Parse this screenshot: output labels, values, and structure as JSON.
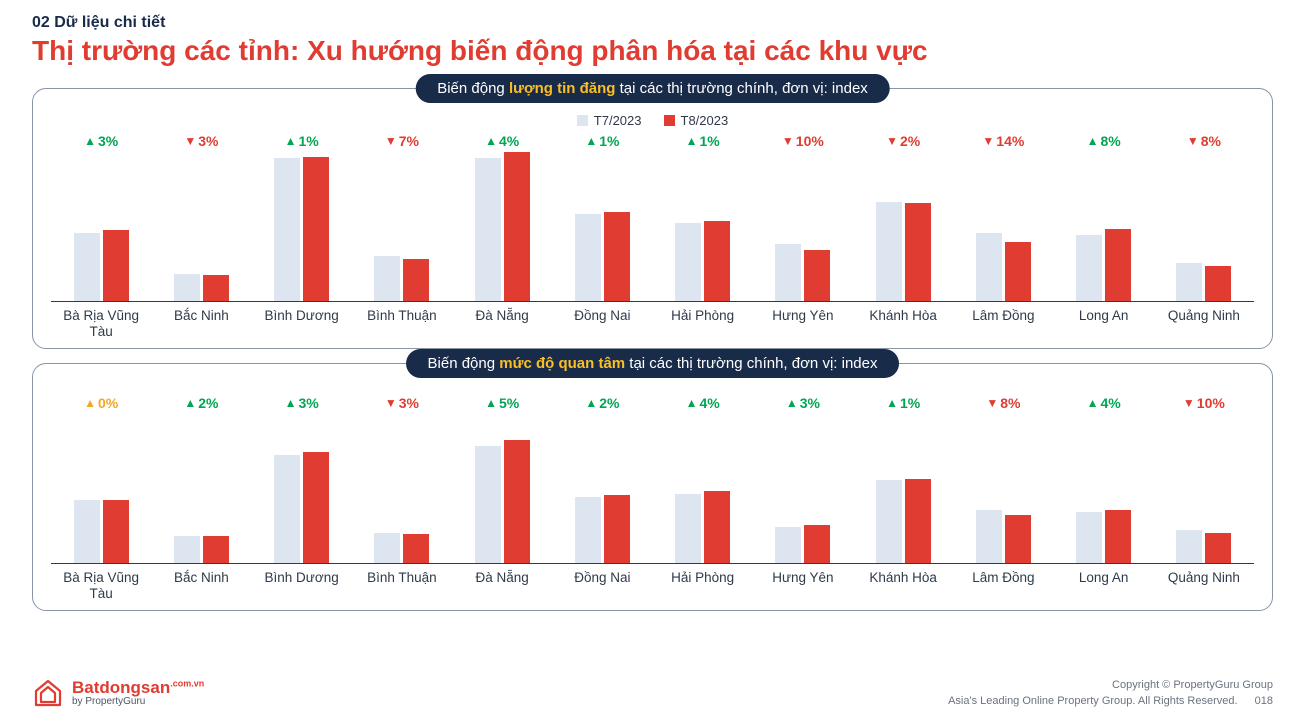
{
  "header": {
    "eyebrow": "02 Dữ liệu chi tiết",
    "title": "Thị trường các tỉnh: Xu hướng biến động phân hóa tại các khu vực"
  },
  "legend": {
    "a_label": "T7/2023",
    "b_label": "T8/2023",
    "a_color": "#DDE6F0",
    "b_color": "#E03C31"
  },
  "categories": [
    "Bà Rịa Vũng Tàu",
    "Bắc Ninh",
    "Bình Dương",
    "Bình Thuận",
    "Đà Nẵng",
    "Đồng Nai",
    "Hải Phòng",
    "Hưng Yên",
    "Khánh Hòa",
    "Lâm Đồng",
    "Long An",
    "Quảng Ninh"
  ],
  "chart1": {
    "title_pre": "Biến động ",
    "title_hl": "lượng tin đăng",
    "title_post": " tại các thị trường chính, đơn vị: index",
    "ymax": 100,
    "bar_a_color": "#DDE6F0",
    "bar_b_color": "#E03C31",
    "series": [
      {
        "a": 45,
        "b": 47,
        "delta": "3%",
        "dir": "up"
      },
      {
        "a": 18,
        "b": 17,
        "delta": "3%",
        "dir": "down"
      },
      {
        "a": 95,
        "b": 96,
        "delta": "1%",
        "dir": "up"
      },
      {
        "a": 30,
        "b": 28,
        "delta": "7%",
        "dir": "down"
      },
      {
        "a": 95,
        "b": 99,
        "delta": "4%",
        "dir": "up"
      },
      {
        "a": 58,
        "b": 59,
        "delta": "1%",
        "dir": "up"
      },
      {
        "a": 52,
        "b": 53,
        "delta": "1%",
        "dir": "up"
      },
      {
        "a": 38,
        "b": 34,
        "delta": "10%",
        "dir": "down"
      },
      {
        "a": 66,
        "b": 65,
        "delta": "2%",
        "dir": "down"
      },
      {
        "a": 45,
        "b": 39,
        "delta": "14%",
        "dir": "down"
      },
      {
        "a": 44,
        "b": 48,
        "delta": "8%",
        "dir": "up"
      },
      {
        "a": 25,
        "b": 23,
        "delta": "8%",
        "dir": "down"
      }
    ]
  },
  "chart2": {
    "title_pre": "Biến động ",
    "title_hl": "mức độ quan tâm",
    "title_post": " tại các thị trường chính, đơn vị: index",
    "ymax": 100,
    "bar_a_color": "#DDE6F0",
    "bar_b_color": "#E03C31",
    "series": [
      {
        "a": 42,
        "b": 42,
        "delta": "0%",
        "dir": "flat"
      },
      {
        "a": 18,
        "b": 18,
        "delta": "2%",
        "dir": "up"
      },
      {
        "a": 72,
        "b": 74,
        "delta": "3%",
        "dir": "up"
      },
      {
        "a": 20,
        "b": 19,
        "delta": "3%",
        "dir": "down"
      },
      {
        "a": 78,
        "b": 82,
        "delta": "5%",
        "dir": "up"
      },
      {
        "a": 44,
        "b": 45,
        "delta": "2%",
        "dir": "up"
      },
      {
        "a": 46,
        "b": 48,
        "delta": "4%",
        "dir": "up"
      },
      {
        "a": 24,
        "b": 25,
        "delta": "3%",
        "dir": "up"
      },
      {
        "a": 55,
        "b": 56,
        "delta": "1%",
        "dir": "up"
      },
      {
        "a": 35,
        "b": 32,
        "delta": "8%",
        "dir": "down"
      },
      {
        "a": 34,
        "b": 35,
        "delta": "4%",
        "dir": "up"
      },
      {
        "a": 22,
        "b": 20,
        "delta": "10%",
        "dir": "down"
      }
    ]
  },
  "footer": {
    "brand_main": "Batdongsan",
    "brand_tld": ".com.vn",
    "brand_sub": "by PropertyGuru",
    "line1": "Copyright © PropertyGuru Group",
    "line2": "Asia's Leading Online Property Group. All Rights Reserved.",
    "page_num": "018"
  },
  "colors": {
    "brand_red": "#E03C31",
    "dark_navy": "#182B49",
    "up_green": "#00A651",
    "down_red": "#E03C31",
    "neutral_yellow": "#F5A623",
    "background": "#FFFFFF",
    "border_grey": "#8A94A6"
  }
}
